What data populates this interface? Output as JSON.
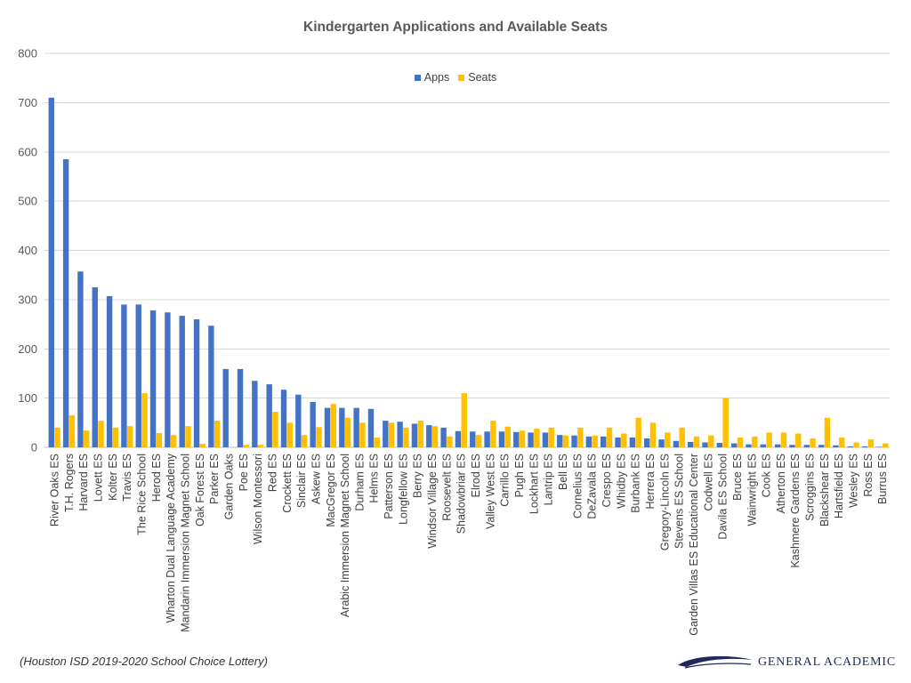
{
  "chart_data": {
    "type": "bar",
    "title": "Kindergarten Applications and Available Seats",
    "ylim": [
      0,
      800
    ],
    "yticks": [
      0,
      100,
      200,
      300,
      400,
      500,
      600,
      700,
      800
    ],
    "grid": true,
    "legend_position": "top-center",
    "categories": [
      "River Oaks ES",
      "T.H. Rogers",
      "Harvard ES",
      "Lovett ES",
      "Kolter ES",
      "Travis ES",
      "The Rice School",
      "Herod ES",
      "Wharton Dual Language Academy",
      "Mandarin Immersion Magnet School",
      "Oak Forest ES",
      "Parker ES",
      "Garden Oaks",
      "Poe ES",
      "Wilson Montessori",
      "Red ES",
      "Crockett ES",
      "Sinclair ES",
      "Askew ES",
      "MacGregor ES",
      "Arabic Immersion Magnet School",
      "Durham ES",
      "Helms ES",
      "Patterson ES",
      "Longfellow ES",
      "Berry ES",
      "Windsor Village ES",
      "Roosevelt ES",
      "Shadowbriar ES",
      "Elrod ES",
      "Valley West ES",
      "Carrillo ES",
      "Pugh ES",
      "Lockhart ES",
      "Lantrip ES",
      "Bell ES",
      "Cornelius ES",
      "DeZavala ES",
      "Crespo ES",
      "Whidby ES",
      "Burbank ES",
      "Herrera ES",
      "Gregory-Lincoln ES",
      "Stevens ES School",
      "Garden Villas ES Educational Center",
      "Codwell ES",
      "Davila ES School",
      "Bruce ES",
      "Wainwright ES",
      "Cook ES",
      "Atherton ES",
      "Kashmere Gardens ES",
      "Scroggins ES",
      "Blackshear ES",
      "Hartsfield ES",
      "Wesley ES",
      "Ross ES",
      "Burrus ES"
    ],
    "series": [
      {
        "name": "Apps",
        "color": "#4472C4",
        "values": [
          710,
          585,
          357,
          325,
          307,
          290,
          290,
          278,
          274,
          267,
          260,
          247,
          159,
          159,
          135,
          128,
          117,
          107,
          92,
          80,
          80,
          80,
          78,
          54,
          52,
          48,
          45,
          40,
          33,
          32,
          32,
          32,
          31,
          30,
          30,
          25,
          24,
          22,
          22,
          20,
          20,
          18,
          16,
          13,
          11,
          10,
          9,
          8,
          6,
          6,
          6,
          5,
          5,
          5,
          4,
          2,
          2,
          1
        ]
      },
      {
        "name": "Seats",
        "color": "#FFC000",
        "values": [
          40,
          65,
          34,
          54,
          40,
          43,
          110,
          29,
          25,
          43,
          7,
          54,
          0,
          5,
          5,
          72,
          50,
          25,
          41,
          88,
          60,
          50,
          20,
          50,
          40,
          54,
          43,
          22,
          110,
          25,
          54,
          42,
          34,
          38,
          40,
          24,
          40,
          24,
          40,
          28,
          60,
          50,
          30,
          40,
          22,
          24,
          100,
          20,
          22,
          30,
          30,
          28,
          18,
          60,
          20,
          10,
          16,
          8
        ]
      }
    ]
  },
  "source_note": "(Houston ISD 2019-2020 School Choice Lottery)",
  "logo": {
    "text": "GENERAL ACADEMIC",
    "icon": "swoosh-logo-icon",
    "color": "#1f2a5a"
  }
}
